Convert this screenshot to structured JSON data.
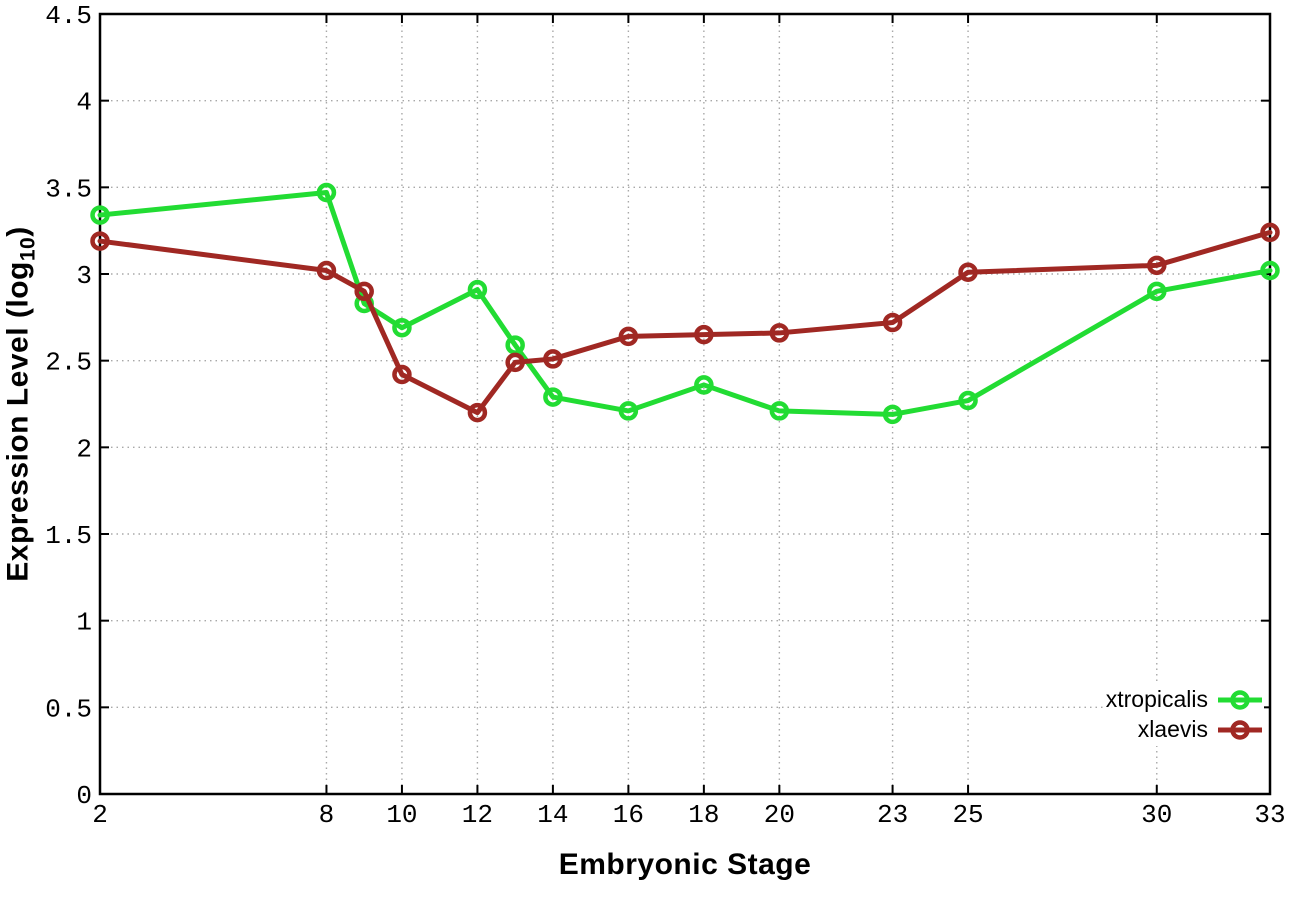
{
  "chart_data": {
    "type": "line",
    "title": "",
    "xlabel": "Embryonic Stage",
    "ylabel": "Expression Level (log10)",
    "ylabel_parts": {
      "main": "Expression Level (log",
      "sub": "10",
      "close": ")"
    },
    "xlim": [
      2,
      33
    ],
    "ylim": [
      0,
      4.5
    ],
    "x_ticks": [
      2,
      8,
      10,
      12,
      14,
      16,
      18,
      20,
      23,
      25,
      30,
      33
    ],
    "y_ticks": [
      0,
      0.5,
      1,
      1.5,
      2,
      2.5,
      3,
      3.5,
      4,
      4.5
    ],
    "y_tick_labels": [
      "0",
      "0.5",
      "1",
      "1.5",
      "2",
      "2.5",
      "3",
      "3.5",
      "4",
      "4.5"
    ],
    "grid": true,
    "legend_position": "bottom-right",
    "marker": "open-circle",
    "x": [
      2,
      8,
      9,
      10,
      12,
      13,
      14,
      16,
      18,
      20,
      23,
      25,
      30,
      33
    ],
    "series": [
      {
        "name": "xtropicalis",
        "color": "#22dc33",
        "values": [
          3.34,
          3.47,
          2.83,
          2.69,
          2.91,
          2.59,
          2.29,
          2.21,
          2.36,
          2.21,
          2.19,
          2.27,
          2.9,
          3.02
        ]
      },
      {
        "name": "xlaevis",
        "color": "#a02823",
        "values": [
          3.19,
          3.02,
          2.9,
          2.42,
          2.2,
          2.49,
          2.51,
          2.64,
          2.65,
          2.66,
          2.72,
          3.01,
          3.05,
          3.24
        ]
      }
    ],
    "grid_color": "#a8a8a8",
    "axis_color": "#000000"
  }
}
